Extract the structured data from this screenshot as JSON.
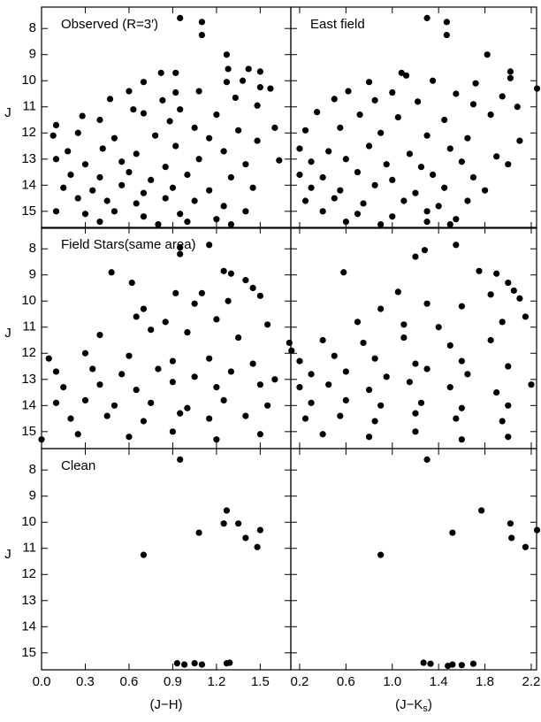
{
  "chart_data": [
    {
      "type": "scatter",
      "panel_label": "Observed (R=3′)",
      "ylabel": "J",
      "show_yticklabels": true,
      "show_xticklabels": false,
      "y_inverted": true,
      "color": "#000000",
      "xlim": [
        0,
        1.71
      ],
      "ylim": [
        7.18,
        15.65
      ],
      "xticks": [
        {
          "value": 0,
          "label": "0.0"
        },
        0.3,
        0.6,
        0.9,
        1.2,
        1.5
      ],
      "yticks": [
        8,
        9,
        10,
        11,
        12,
        13,
        14,
        15
      ],
      "x": [
        0.95,
        1.1,
        1.1,
        1.27,
        1.28,
        1.42,
        1.5,
        0.82,
        0.92,
        0.7,
        1.27,
        1.38,
        0.6,
        0.92,
        1.5,
        1.57,
        0.47,
        0.83,
        1.08,
        1.33,
        0.28,
        0.63,
        0.95,
        1.2,
        1.48,
        0.1,
        0.4,
        0.7,
        0.88,
        1.05,
        1.35,
        1.6,
        0.08,
        0.25,
        0.5,
        0.78,
        1.15,
        1.48,
        0.18,
        0.42,
        0.65,
        0.92,
        1.25,
        1.63,
        0.1,
        0.3,
        0.55,
        0.85,
        1.08,
        1.4,
        0.2,
        0.4,
        0.6,
        0.75,
        1.0,
        1.3,
        0.15,
        0.35,
        0.55,
        0.7,
        0.9,
        1.15,
        1.45,
        0.25,
        0.45,
        0.65,
        0.85,
        1.05,
        1.25,
        0.1,
        0.3,
        0.5,
        0.7,
        0.95,
        1.2,
        1.4,
        0.4,
        0.8,
        1.0,
        1.3
      ],
      "y": [
        7.6,
        7.75,
        8.25,
        9.0,
        9.55,
        9.55,
        9.65,
        9.7,
        9.7,
        10.05,
        10.05,
        10.0,
        10.4,
        10.45,
        10.25,
        10.3,
        10.7,
        10.75,
        10.4,
        10.65,
        11.35,
        11.1,
        11.1,
        11.3,
        10.95,
        11.7,
        11.5,
        11.25,
        11.55,
        11.8,
        11.9,
        11.8,
        12.1,
        12.0,
        12.2,
        12.1,
        12.2,
        12.3,
        12.7,
        12.6,
        12.8,
        12.5,
        12.7,
        13.05,
        13.0,
        13.2,
        13.1,
        13.3,
        13.0,
        13.2,
        13.6,
        13.7,
        13.5,
        13.8,
        13.6,
        13.7,
        14.1,
        14.2,
        14.0,
        14.3,
        14.1,
        14.2,
        14.1,
        14.5,
        14.6,
        14.7,
        14.5,
        14.6,
        14.8,
        15.0,
        15.1,
        15.0,
        15.2,
        15.1,
        15.3,
        15.0,
        15.4,
        15.5,
        15.4,
        15.5
      ]
    },
    {
      "type": "scatter",
      "panel_label": "East field",
      "show_yticklabels": false,
      "show_xticklabels": false,
      "y_inverted": true,
      "color": "#000000",
      "xlim": [
        0.124,
        2.246
      ],
      "ylim": [
        7.18,
        15.65
      ],
      "xticks": [
        0.2,
        0.6,
        {
          "value": 1,
          "label": "1.0"
        },
        1.4,
        1.8,
        2.2
      ],
      "yticks": [
        8,
        9,
        10,
        11,
        12,
        13,
        14,
        15
      ],
      "x": [
        1.3,
        1.47,
        1.47,
        1.82,
        2.02,
        2.02,
        1.08,
        1.12,
        0.8,
        1.35,
        1.72,
        2.25,
        0.62,
        1.0,
        1.55,
        1.95,
        0.5,
        0.85,
        1.22,
        1.7,
        2.08,
        0.35,
        0.72,
        1.05,
        1.45,
        1.85,
        0.25,
        0.55,
        0.9,
        1.3,
        1.65,
        2.1,
        0.2,
        0.45,
        0.8,
        1.15,
        1.5,
        1.9,
        0.3,
        0.6,
        0.95,
        1.25,
        1.6,
        2.0,
        0.2,
        0.4,
        0.7,
        1.0,
        1.35,
        1.7,
        0.3,
        0.55,
        0.85,
        1.2,
        1.45,
        1.8,
        0.25,
        0.5,
        0.75,
        1.1,
        1.4,
        1.65,
        0.4,
        0.7,
        1.0,
        1.3,
        1.55,
        0.6,
        0.9,
        1.3,
        1.5
      ],
      "y": [
        7.6,
        7.75,
        8.25,
        9.0,
        9.65,
        9.9,
        9.7,
        9.8,
        10.05,
        10.0,
        10.1,
        10.3,
        10.4,
        10.45,
        10.5,
        10.6,
        10.7,
        10.75,
        10.8,
        10.9,
        11.0,
        11.2,
        11.3,
        11.4,
        11.5,
        11.3,
        11.9,
        11.8,
        12.0,
        12.1,
        12.2,
        12.3,
        12.6,
        12.7,
        12.5,
        12.8,
        12.6,
        12.9,
        13.1,
        13.0,
        13.2,
        13.3,
        13.1,
        13.2,
        13.6,
        13.7,
        13.5,
        13.8,
        13.6,
        13.7,
        14.1,
        14.2,
        14.0,
        14.3,
        14.1,
        14.2,
        14.6,
        14.5,
        14.7,
        14.6,
        14.8,
        14.6,
        15.0,
        15.1,
        15.2,
        15.0,
        15.3,
        15.4,
        15.5,
        15.4,
        15.5
      ]
    },
    {
      "type": "scatter",
      "panel_label": "Field Stars(same area)",
      "ylabel": "J",
      "show_yticklabels": true,
      "show_xticklabels": false,
      "y_inverted": true,
      "color": "#000000",
      "xlim": [
        0,
        1.71
      ],
      "ylim": [
        7.18,
        15.65
      ],
      "xticks": [
        {
          "value": 0,
          "label": "0.0"
        },
        0.3,
        0.6,
        0.9,
        1.2,
        1.5
      ],
      "yticks": [
        8,
        9,
        10,
        11,
        12,
        13,
        14,
        15
      ],
      "x": [
        0.95,
        0.95,
        1.15,
        1.25,
        1.3,
        0.48,
        0.62,
        1.4,
        1.45,
        0.92,
        1.1,
        1.5,
        0.7,
        1.05,
        1.28,
        0.65,
        0.85,
        1.2,
        1.55,
        0.4,
        0.75,
        1.0,
        1.35,
        1.7,
        0.05,
        0.3,
        0.6,
        0.9,
        1.15,
        1.45,
        0.1,
        0.35,
        0.55,
        0.8,
        1.05,
        1.3,
        1.6,
        0.15,
        0.4,
        0.65,
        0.9,
        1.2,
        1.5,
        0.1,
        0.3,
        0.5,
        0.75,
        1.0,
        1.25,
        1.55,
        0.2,
        0.45,
        0.7,
        0.95,
        1.15,
        1.4,
        0.0,
        0.25,
        0.6,
        0.9,
        1.2,
        1.5
      ],
      "y": [
        7.95,
        8.2,
        7.85,
        8.85,
        8.95,
        8.9,
        9.3,
        9.2,
        9.5,
        9.7,
        9.7,
        9.8,
        10.3,
        10.1,
        10.0,
        10.6,
        10.8,
        10.7,
        10.9,
        11.3,
        11.1,
        11.2,
        11.4,
        11.6,
        12.2,
        12.0,
        12.1,
        12.3,
        12.2,
        12.4,
        12.7,
        12.6,
        12.8,
        12.6,
        12.9,
        12.7,
        13.0,
        13.3,
        13.2,
        13.4,
        13.1,
        13.3,
        13.2,
        13.9,
        13.8,
        14.0,
        13.9,
        14.1,
        13.8,
        14.0,
        14.5,
        14.4,
        14.6,
        14.3,
        14.5,
        14.4,
        15.3,
        15.1,
        15.2,
        15.0,
        15.3,
        15.1
      ]
    },
    {
      "type": "scatter",
      "show_yticklabels": false,
      "show_xticklabels": false,
      "y_inverted": true,
      "color": "#000000",
      "xlim": [
        0.124,
        2.246
      ],
      "ylim": [
        7.18,
        15.65
      ],
      "xticks": [
        0.2,
        0.6,
        {
          "value": 1,
          "label": "1.0"
        },
        1.4,
        1.8,
        2.2
      ],
      "yticks": [
        8,
        9,
        10,
        11,
        12,
        13,
        14,
        15
      ],
      "x": [
        1.2,
        1.28,
        1.55,
        1.75,
        1.9,
        0.58,
        2.0,
        2.05,
        1.05,
        1.85,
        2.1,
        0.9,
        1.3,
        1.6,
        2.15,
        0.7,
        1.1,
        1.4,
        1.95,
        0.13,
        0.4,
        0.75,
        1.1,
        1.5,
        1.85,
        0.2,
        0.5,
        0.85,
        1.2,
        1.6,
        2.0,
        0.3,
        0.6,
        0.95,
        1.3,
        1.65,
        2.2,
        0.2,
        0.45,
        0.8,
        1.15,
        1.5,
        1.9,
        0.3,
        0.6,
        0.9,
        1.25,
        1.6,
        2.0,
        0.25,
        0.55,
        0.85,
        1.2,
        1.55,
        1.95,
        0.4,
        0.8,
        1.2,
        1.6,
        2.0
      ],
      "y": [
        8.3,
        8.05,
        7.85,
        8.85,
        8.95,
        8.9,
        9.3,
        9.6,
        9.65,
        9.75,
        9.9,
        10.3,
        10.1,
        10.2,
        10.6,
        10.8,
        10.9,
        11.0,
        10.8,
        11.9,
        11.5,
        11.6,
        11.4,
        11.7,
        11.5,
        12.3,
        12.1,
        12.2,
        12.4,
        12.3,
        12.5,
        12.8,
        12.7,
        12.9,
        12.6,
        12.8,
        13.2,
        13.3,
        13.2,
        13.4,
        13.1,
        13.3,
        13.5,
        13.9,
        13.8,
        14.0,
        13.9,
        14.1,
        14.0,
        14.5,
        14.4,
        14.6,
        14.3,
        14.5,
        14.6,
        15.1,
        15.2,
        15.0,
        15.3,
        15.2
      ]
    },
    {
      "type": "scatter",
      "panel_label": "Clean",
      "ylabel": "J",
      "xlabel": [
        "(J−H)"
      ],
      "show_yticklabels": true,
      "show_xticklabels": true,
      "y_inverted": true,
      "color": "#000000",
      "xlim": [
        0,
        1.71
      ],
      "ylim": [
        7.18,
        15.65
      ],
      "xticks": [
        {
          "value": 0,
          "label": "0.0"
        },
        0.3,
        0.6,
        0.9,
        1.2,
        1.5
      ],
      "yticks": [
        8,
        9,
        10,
        11,
        12,
        13,
        14,
        15
      ],
      "x": [
        0.95,
        1.27,
        1.25,
        1.35,
        1.5,
        1.08,
        1.4,
        1.48,
        0.7,
        0.93,
        0.98,
        1.05,
        1.1,
        1.27,
        1.29
      ],
      "y": [
        7.6,
        9.55,
        10.05,
        10.05,
        10.3,
        10.4,
        10.6,
        10.95,
        11.25,
        15.4,
        15.45,
        15.4,
        15.45,
        15.4,
        15.38
      ]
    },
    {
      "type": "scatter",
      "xlabel": [
        "(J−K",
        "s",
        ")"
      ],
      "show_yticklabels": false,
      "show_xticklabels": true,
      "y_inverted": true,
      "color": "#000000",
      "xlim": [
        0.124,
        2.246
      ],
      "ylim": [
        7.18,
        15.65
      ],
      "xticks": [
        0.2,
        0.6,
        {
          "value": 1,
          "label": "1.0"
        },
        1.4,
        1.8,
        2.2
      ],
      "yticks": [
        8,
        9,
        10,
        11,
        12,
        13,
        14,
        15
      ],
      "x": [
        1.3,
        1.77,
        2.02,
        2.25,
        1.52,
        2.03,
        2.15,
        0.9,
        1.27,
        1.33,
        1.48,
        1.52,
        1.6,
        1.7
      ],
      "y": [
        7.6,
        9.55,
        10.05,
        10.3,
        10.4,
        10.6,
        10.95,
        11.25,
        15.38,
        15.42,
        15.5,
        15.45,
        15.47,
        15.42
      ]
    }
  ]
}
